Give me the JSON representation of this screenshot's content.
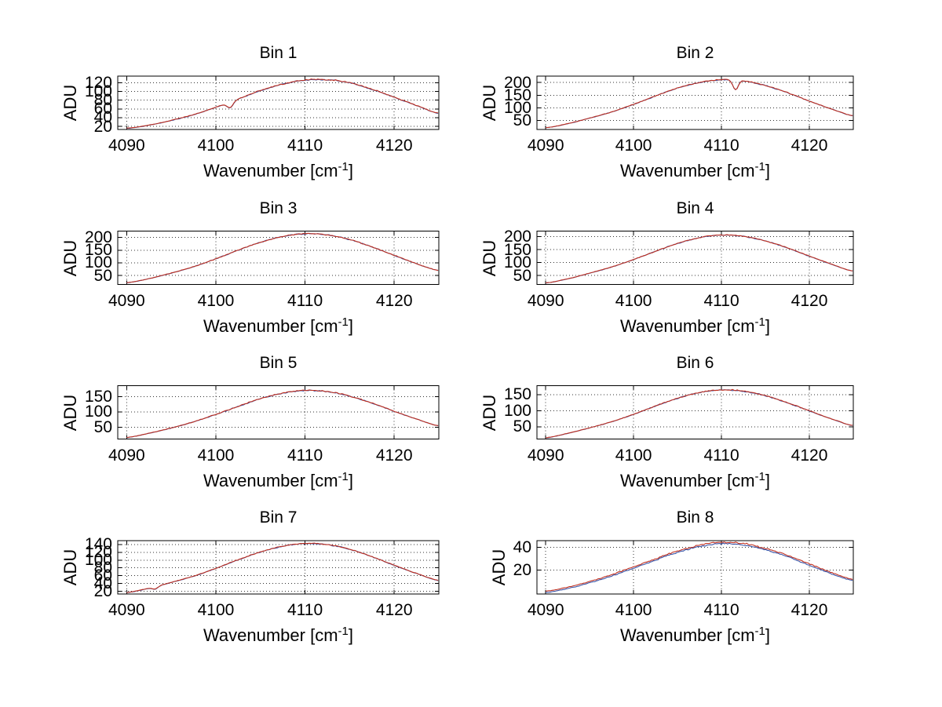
{
  "figure": {
    "background": "#ffffff",
    "axis_color": "#000000",
    "grid_color": "#333333",
    "grid_style": "dotted",
    "line_colors": [
      "#3a56a8",
      "#c03020"
    ]
  },
  "labels": {
    "ylabel": "ADU",
    "xlabel_prefix": "Wavenumber [cm",
    "xlabel_sup": "-1",
    "xlabel_suffix": "]"
  },
  "chart_data": [
    {
      "type": "line",
      "title": "Bin 1",
      "xlabel": "Wavenumber [cm⁻¹]",
      "ylabel": "ADU",
      "xlim": [
        4089,
        4125
      ],
      "xticks": [
        4090,
        4100,
        4110,
        4120
      ],
      "ylim": [
        13,
        135
      ],
      "yticks": [
        20,
        40,
        60,
        80,
        100,
        120
      ],
      "x_start": 4090,
      "x_step": 2.5,
      "y": [
        16,
        23,
        34,
        47,
        64,
        83,
        102,
        117,
        126,
        127,
        120,
        105,
        87,
        68,
        50
      ],
      "noise": 1.8,
      "blue_offset": 0.4,
      "dip": {
        "x": 4101.6,
        "depth": 13,
        "width": 0.35
      }
    },
    {
      "type": "line",
      "title": "Bin 2",
      "xlabel": "Wavenumber [cm⁻¹]",
      "ylabel": "ADU",
      "xlim": [
        4089,
        4125
      ],
      "xticks": [
        4090,
        4100,
        4110,
        4120
      ],
      "ylim": [
        15,
        225
      ],
      "yticks": [
        50,
        100,
        150,
        200
      ],
      "x_start": 4090,
      "x_step": 2.5,
      "y": [
        22,
        38,
        60,
        84,
        114,
        147,
        178,
        200,
        211,
        206,
        188,
        160,
        127,
        96,
        69
      ],
      "noise": 2.5,
      "blue_offset": 0.4,
      "dip": {
        "x": 4111.6,
        "depth": 38,
        "width": 0.3
      }
    },
    {
      "type": "line",
      "title": "Bin 3",
      "xlabel": "Wavenumber [cm⁻¹]",
      "ylabel": "ADU",
      "xlim": [
        4089,
        4125
      ],
      "xticks": [
        4090,
        4100,
        4110,
        4120
      ],
      "ylim": [
        15,
        225
      ],
      "yticks": [
        50,
        100,
        150,
        200
      ],
      "x_start": 4090,
      "x_step": 2.5,
      "y": [
        22,
        38,
        60,
        85,
        116,
        150,
        181,
        204,
        215,
        210,
        192,
        163,
        130,
        97,
        70
      ],
      "noise": 2.5,
      "blue_offset": 0.4,
      "dip": null
    },
    {
      "type": "line",
      "title": "Bin 4",
      "xlabel": "Wavenumber [cm⁻¹]",
      "ylabel": "ADU",
      "xlim": [
        4089,
        4125
      ],
      "xticks": [
        4090,
        4100,
        4110,
        4120
      ],
      "ylim": [
        15,
        222
      ],
      "yticks": [
        50,
        100,
        150,
        200
      ],
      "x_start": 4090,
      "x_step": 2.5,
      "y": [
        21,
        37,
        59,
        83,
        112,
        144,
        174,
        197,
        207,
        202,
        184,
        157,
        125,
        94,
        67
      ],
      "noise": 2.2,
      "blue_offset": 0.4,
      "dip": null
    },
    {
      "type": "line",
      "title": "Bin 5",
      "xlabel": "Wavenumber [cm⁻¹]",
      "ylabel": "ADU",
      "xlim": [
        4089,
        4125
      ],
      "xticks": [
        4090,
        4100,
        4110,
        4120
      ],
      "ylim": [
        12,
        185
      ],
      "yticks": [
        50,
        100,
        150
      ],
      "x_start": 4090,
      "x_step": 2.5,
      "y": [
        17,
        31,
        48,
        68,
        92,
        118,
        143,
        161,
        170,
        166,
        151,
        129,
        102,
        77,
        55
      ],
      "noise": 2.2,
      "blue_offset": 0.4,
      "dip": null
    },
    {
      "type": "line",
      "title": "Bin 6",
      "xlabel": "Wavenumber [cm⁻¹]",
      "ylabel": "ADU",
      "xlim": [
        4089,
        4125
      ],
      "xticks": [
        4090,
        4100,
        4110,
        4120
      ],
      "ylim": [
        12,
        178
      ],
      "yticks": [
        50,
        100,
        150
      ],
      "x_start": 4090,
      "x_step": 2.5,
      "y": [
        16,
        30,
        47,
        66,
        89,
        115,
        139,
        157,
        165,
        161,
        147,
        125,
        100,
        75,
        54
      ],
      "noise": 2.0,
      "blue_offset": 0.4,
      "dip": null
    },
    {
      "type": "line",
      "title": "Bin 7",
      "xlabel": "Wavenumber [cm⁻¹]",
      "ylabel": "ADU",
      "xlim": [
        4089,
        4125
      ],
      "xticks": [
        4090,
        4100,
        4110,
        4120
      ],
      "ylim": [
        13,
        150
      ],
      "yticks": [
        20,
        40,
        60,
        80,
        100,
        120,
        140
      ],
      "x_start": 4090,
      "x_step": 2.5,
      "y": [
        17,
        28,
        43,
        59,
        79,
        101,
        121,
        136,
        143,
        140,
        128,
        109,
        87,
        66,
        48
      ],
      "noise": 1.5,
      "blue_offset": 0.4,
      "dip": {
        "x": 4093.2,
        "depth": 6,
        "width": 0.3
      }
    },
    {
      "type": "line",
      "title": "Bin 8",
      "xlabel": "Wavenumber [cm⁻¹]",
      "ylabel": "ADU",
      "xlim": [
        4089,
        4125
      ],
      "xticks": [
        4090,
        4100,
        4110,
        4120
      ],
      "ylim": [
        -1,
        46
      ],
      "yticks": [
        20,
        40
      ],
      "x_start": 4090,
      "x_step": 2.5,
      "y": [
        1.5,
        5,
        10,
        16,
        23,
        30,
        37,
        42,
        44.5,
        43.5,
        39,
        33,
        25.5,
        18,
        12
      ],
      "noise": 0.8,
      "blue_offset": 1.2,
      "dip": null
    }
  ]
}
